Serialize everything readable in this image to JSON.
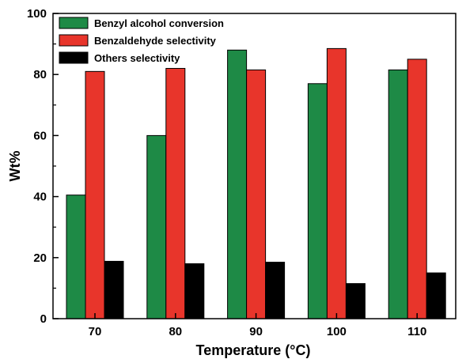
{
  "chart_data": {
    "type": "bar",
    "categories": [
      "70",
      "80",
      "90",
      "100",
      "110"
    ],
    "series": [
      {
        "name": "Benzyl alcohol conversion",
        "color": "#1e8a46",
        "values": [
          40.5,
          60,
          88,
          77,
          81.5
        ]
      },
      {
        "name": "Benzaldehyde selectivity",
        "color": "#e8352b",
        "values": [
          81,
          82,
          81.5,
          88.5,
          85
        ]
      },
      {
        "name": "Others selectivity",
        "color": "#000000",
        "values": [
          18.8,
          18,
          18.5,
          11.5,
          15
        ]
      }
    ],
    "xlabel": "Temperature (°C)",
    "ylabel": "Wt%",
    "ylim": [
      0,
      100
    ],
    "yticks": [
      "0",
      "20",
      "40",
      "60",
      "80",
      "100"
    ],
    "legend_position": "top-left",
    "grid": false
  }
}
